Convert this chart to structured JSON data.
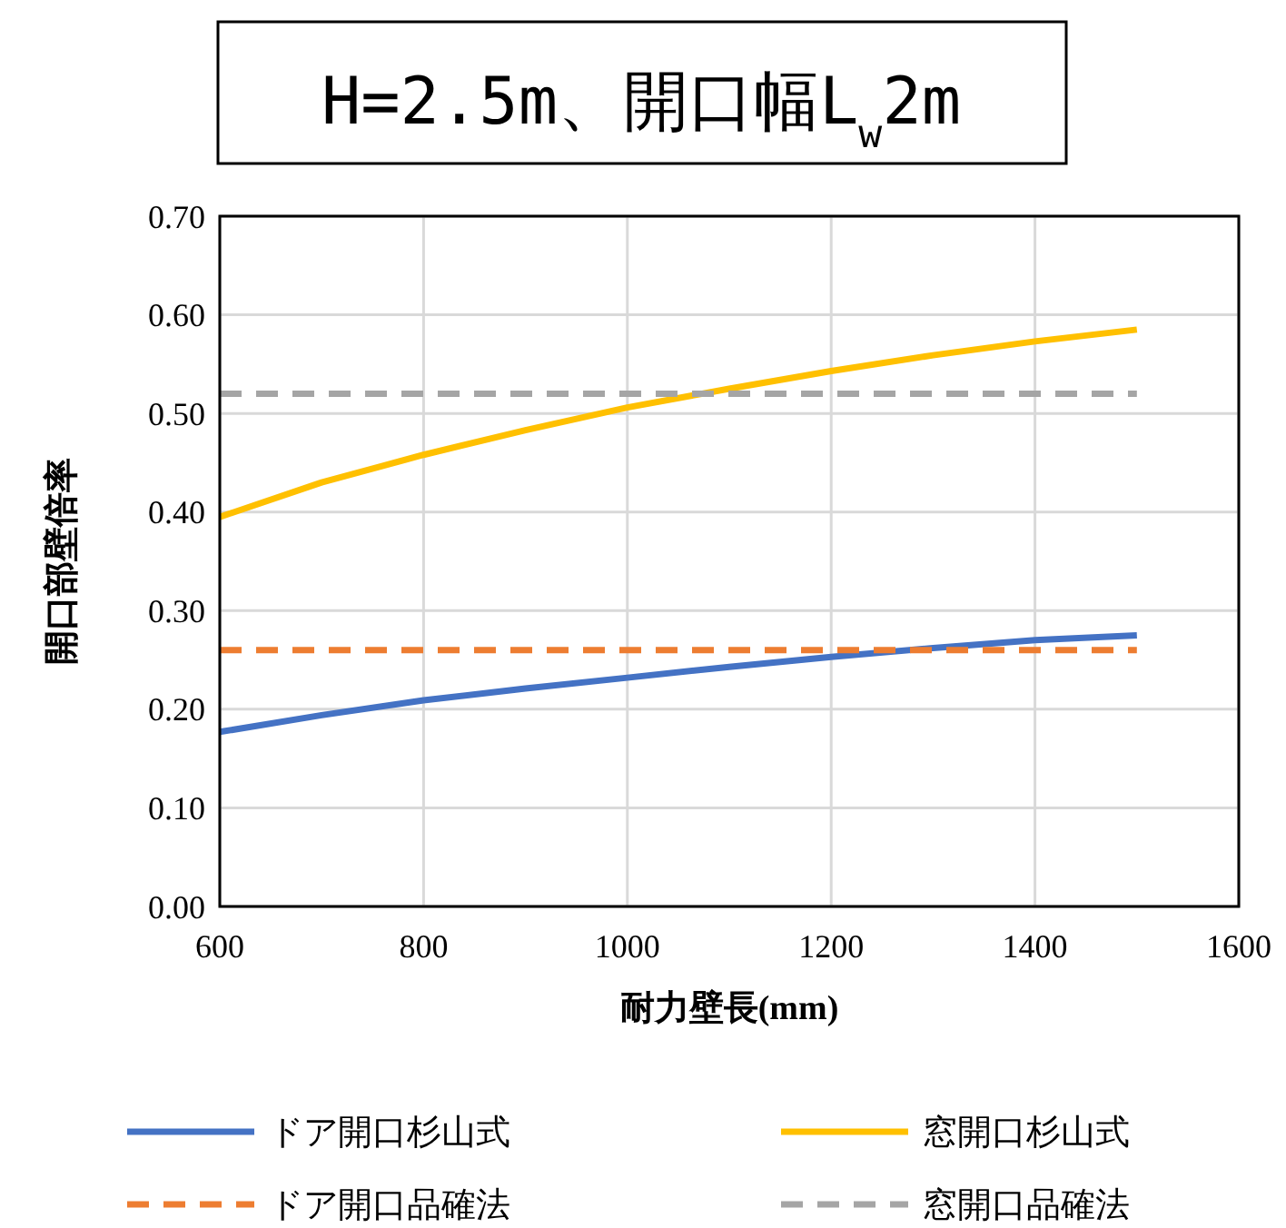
{
  "chart_data": {
    "type": "line",
    "title": "H=2.5m、開口幅L$_{w}$2m",
    "xlabel": "耐力壁長(mm)",
    "ylabel": "開口部壁倍率",
    "x": [
      600,
      700,
      800,
      900,
      1000,
      1100,
      1200,
      1300,
      1400,
      1500
    ],
    "series": [
      {
        "name": "ドア開口杉山式",
        "color": "#4472c4",
        "line_style": "solid",
        "values": [
          0.177,
          0.194,
          0.209,
          0.221,
          0.232,
          0.243,
          0.253,
          0.262,
          0.27,
          0.275
        ]
      },
      {
        "name": "窓開口杉山式",
        "color": "#ffc000",
        "line_style": "solid",
        "values": [
          0.395,
          0.43,
          0.458,
          0.483,
          0.506,
          0.525,
          0.543,
          0.559,
          0.573,
          0.585
        ]
      },
      {
        "name": "ドア開口品確法",
        "color": "#ed7d31",
        "line_style": "dashed",
        "values": [
          0.26,
          0.26,
          0.26,
          0.26,
          0.26,
          0.26,
          0.26,
          0.26,
          0.26,
          0.26
        ]
      },
      {
        "name": "窓開口品確法",
        "color": "#a5a5a5",
        "line_style": "dashed",
        "values": [
          0.52,
          0.52,
          0.52,
          0.52,
          0.52,
          0.52,
          0.52,
          0.52,
          0.52,
          0.52
        ]
      }
    ],
    "xlim": [
      600,
      1600
    ],
    "xticks": [
      600,
      800,
      1000,
      1200,
      1400,
      1600
    ],
    "ylim": [
      0,
      0.7
    ],
    "yticks": [
      {
        "value": 0,
        "label": "0.00"
      },
      {
        "value": 0.1,
        "label": "0.10"
      },
      {
        "value": 0.2,
        "label": "0.20"
      },
      {
        "value": 0.3,
        "label": "0.30"
      },
      {
        "value": 0.4,
        "label": "0.40"
      },
      {
        "value": 0.5,
        "label": "0.50"
      },
      {
        "value": 0.6,
        "label": "0.60"
      },
      {
        "value": 0.7,
        "label": "0.70"
      }
    ],
    "grid": true,
    "legend": "bottom"
  }
}
